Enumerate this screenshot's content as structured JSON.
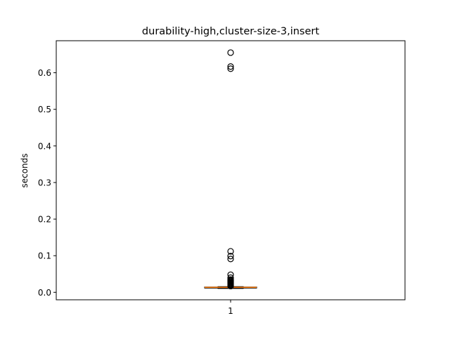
{
  "chart_data": {
    "type": "box",
    "title": "durability-high,cluster-size-3,insert",
    "xlabel": "",
    "ylabel": "seconds",
    "categories": [
      "1"
    ],
    "ylim": [
      -0.0205,
      0.6875
    ],
    "yticks": [
      0.0,
      0.1,
      0.2,
      0.3,
      0.4,
      0.5,
      0.6
    ],
    "ytick_labels": [
      "0.0",
      "0.1",
      "0.2",
      "0.3",
      "0.4",
      "0.5",
      "0.6"
    ],
    "grid": false,
    "box": {
      "q1": 0.0115,
      "median": 0.0135,
      "q3": 0.0145,
      "whisker_low": 0.0105,
      "whisker_high": 0.0155
    },
    "outliers": [
      0.655,
      0.617,
      0.611,
      0.112,
      0.099,
      0.091,
      0.048,
      0.04,
      0.035,
      0.032,
      0.03,
      0.028,
      0.026,
      0.024,
      0.022,
      0.02,
      0.018,
      0.017
    ],
    "colors": {
      "box": "#000000",
      "median": "#ff7f0e",
      "outlier": "#000000"
    }
  }
}
